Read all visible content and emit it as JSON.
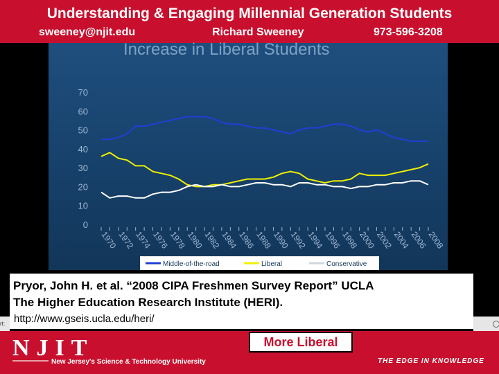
{
  "header": {
    "title": "Understanding & Engaging Millennial Generation Students",
    "email": "sweeney@njit.edu",
    "name": "Richard Sweeney",
    "phone": "973-596-3208"
  },
  "citation": {
    "line1": "Pryor, John H. et al.  “2008 CIPA Freshmen Survey Report” UCLA",
    "line2": "The Higher Education Research Institute (HERI).",
    "line3": "http://www.gseis.ucla.edu/heri/"
  },
  "footer": {
    "logo": "NJIT",
    "subtitle": "New Jersey's Science & Technology University",
    "tagline": "THE EDGE IN KNOWLEDGE",
    "callout": "More Liberal",
    "side_label": "rt:"
  },
  "colors": {
    "brand_red": "#c8102e",
    "middle": "#1f3fd6",
    "liberal": "#f0f000",
    "conservative": "#ffffff"
  },
  "chart_data": {
    "type": "line",
    "title": "Increase in Liberal Students",
    "ylim": [
      0,
      70
    ],
    "yticks": [
      0,
      10,
      20,
      30,
      40,
      50,
      60,
      70
    ],
    "xlim": [
      1970,
      2008
    ],
    "xtick_labels": [
      "1970",
      "1972",
      "1974",
      "1976",
      "1978",
      "1980",
      "1982",
      "1984",
      "1986",
      "1988",
      "1990",
      "1992",
      "1994",
      "1996",
      "1998",
      "2000",
      "2002",
      "2004",
      "2006",
      "2008"
    ],
    "x": [
      1970,
      1971,
      1972,
      1973,
      1974,
      1975,
      1976,
      1977,
      1978,
      1979,
      1980,
      1981,
      1982,
      1983,
      1984,
      1985,
      1986,
      1987,
      1988,
      1989,
      1990,
      1991,
      1992,
      1993,
      1994,
      1995,
      1996,
      1997,
      1998,
      1999,
      2000,
      2001,
      2002,
      2003,
      2004,
      2005,
      2006,
      2007,
      2008
    ],
    "series": [
      {
        "name": "Middle-of-the-road",
        "color": "#1f3fd6",
        "values": [
          45,
          45,
          46,
          48,
          52,
          52,
          53,
          54,
          55,
          56,
          57,
          57,
          57,
          56,
          54,
          53,
          53,
          52,
          51,
          51,
          50,
          49,
          48,
          50,
          51,
          51,
          52,
          53,
          53,
          52,
          50,
          49,
          50,
          48,
          46,
          45,
          44,
          44,
          44
        ]
      },
      {
        "name": "Liberal",
        "color": "#f0f000",
        "values": [
          36,
          38,
          35,
          34,
          31,
          31,
          28,
          27,
          26,
          24,
          21,
          20,
          20,
          21,
          21,
          22,
          23,
          24,
          24,
          24,
          25,
          27,
          28,
          27,
          24,
          23,
          22,
          23,
          23,
          24,
          27,
          26,
          26,
          26,
          27,
          28,
          29,
          30,
          32
        ]
      },
      {
        "name": "Conservative",
        "color": "#ffffff",
        "values": [
          17,
          14,
          15,
          15,
          14,
          14,
          16,
          17,
          17,
          18,
          20,
          21,
          20,
          20,
          21,
          20,
          20,
          21,
          22,
          22,
          21,
          21,
          20,
          22,
          22,
          21,
          21,
          20,
          20,
          19,
          20,
          20,
          21,
          21,
          22,
          22,
          23,
          23,
          21
        ]
      }
    ],
    "legend": "bottom",
    "grid": false
  }
}
